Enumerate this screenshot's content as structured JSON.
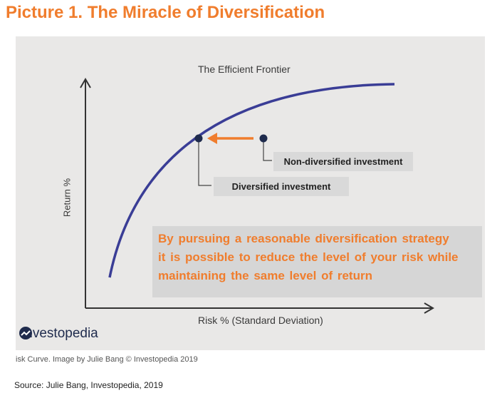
{
  "heading": "Picture 1. The Miracle of Diversification",
  "diagram": {
    "title": "The Efficient Frontier",
    "x_axis_label": "Risk % (Standard Deviation)",
    "y_axis_label": "Return %",
    "non_diversified_label": "Non-diversified investment",
    "diversified_label": "Diversified investment",
    "curve_color": "#3a3d96",
    "arrow_color": "#f07d2d",
    "point_color": "#1f2b4d"
  },
  "textbox": {
    "lines": [
      "By pursuing a reasonable diversification strategy",
      "it is possible to reduce the level of your risk while",
      "maintaining the same level of return"
    ]
  },
  "logo": {
    "name": "Investopedia",
    "icon": "investopedia-logo-icon"
  },
  "caption": "isk Curve. Image by Julie Bang © Investopedia 2019",
  "source": "Source: Julie Bang, Investopedia, 2019"
}
